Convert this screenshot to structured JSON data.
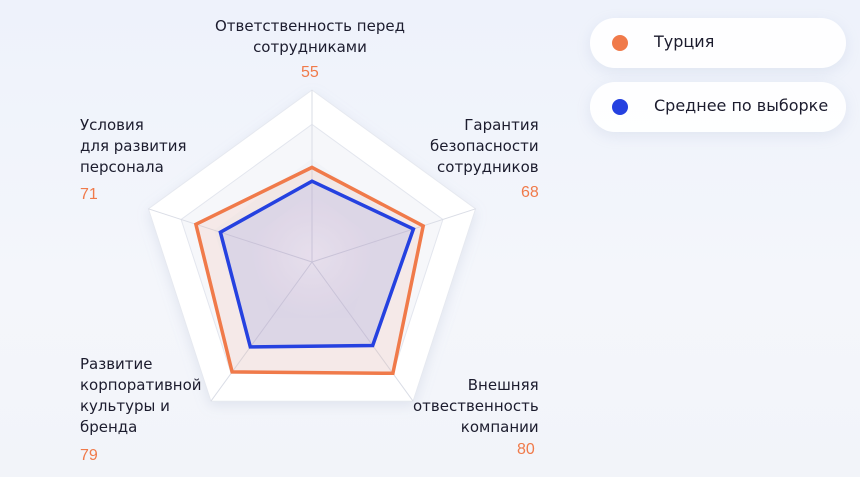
{
  "chart_data": {
    "type": "radar",
    "axes": [
      {
        "label_lines": [
          "Ответственность перед",
          "сотрудниками"
        ],
        "value_label": "55"
      },
      {
        "label_lines": [
          "Гарантия",
          "безопасности",
          "сотрудников"
        ],
        "value_label": "68"
      },
      {
        "label_lines": [
          "Внешняя",
          "отвественность",
          "компании"
        ],
        "value_label": "80"
      },
      {
        "label_lines": [
          "Развитие",
          "корпоративной",
          "культуры и",
          "бренда"
        ],
        "value_label": "79"
      },
      {
        "label_lines": [
          "Условия",
          "для развития",
          "персонала"
        ],
        "value_label": "71"
      }
    ],
    "range": [
      0,
      100
    ],
    "series": [
      {
        "name": "Турция",
        "color": "#f07a4a",
        "values": [
          55,
          68,
          80,
          79,
          71
        ]
      },
      {
        "name": "Среднее по выборке",
        "color": "#2541e0",
        "values": [
          47,
          62,
          60,
          61,
          56
        ]
      }
    ],
    "legend_position": "top-right"
  },
  "colors": {
    "accent_orange": "#f07a4a",
    "accent_blue": "#2541e0"
  }
}
